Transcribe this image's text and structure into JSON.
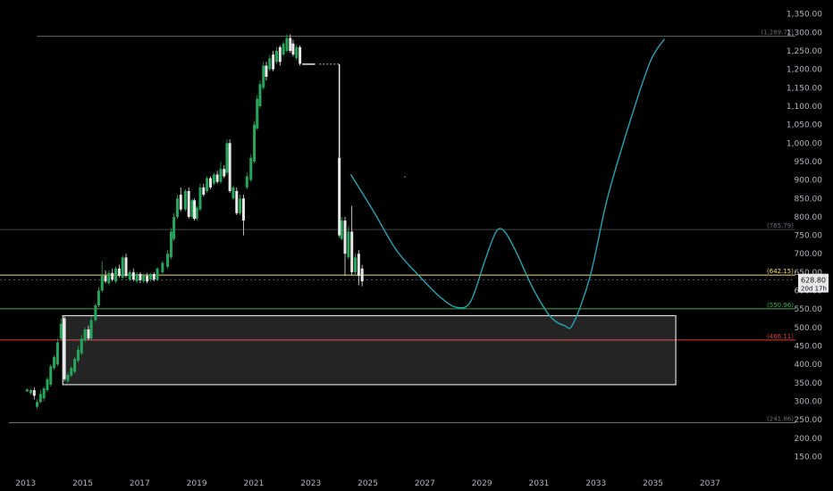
{
  "chart_data": {
    "type": "candlestick",
    "x_range": [
      2012.1,
      2038.9
    ],
    "y_range": [
      110,
      1388
    ],
    "y_ticks": [
      150,
      200,
      250,
      300,
      350,
      400,
      450,
      500,
      550,
      600,
      650,
      700,
      750,
      800,
      850,
      900,
      950,
      1000,
      1050,
      1100,
      1150,
      1200,
      1250,
      1300,
      1350
    ],
    "y_tick_labels": [
      "150.00",
      "200.00",
      "250.00",
      "300.00",
      "350.00",
      "400.00",
      "450.00",
      "500.00",
      "550.00",
      "600.00",
      "650.00",
      "700.00",
      "750.00",
      "800.00",
      "850.00",
      "900.00",
      "950.00",
      "1,000.00",
      "1,050.00",
      "1,100.00",
      "1,150.00",
      "1,200.00",
      "1,250.00",
      "1,300.00",
      "1,350.00"
    ],
    "x_ticks": [
      2013,
      2015,
      2017,
      2019,
      2021,
      2023,
      2025,
      2027,
      2029,
      2031,
      2033,
      2035,
      2037
    ],
    "x_tick_labels": [
      "2013",
      "2015",
      "2017",
      "2019",
      "2021",
      "2023",
      "2025",
      "2027",
      "2029",
      "2031",
      "2033",
      "2035",
      "2037"
    ],
    "levels": [
      {
        "value": 1289.72,
        "label": "(1,289.72)",
        "color": "#5d6e5f",
        "label_color": "#6b6f7a",
        "x_start": 2013.4
      },
      {
        "value": 765.79,
        "label": "(765.79)",
        "color": "#444444",
        "label_color": "#6b6f7a",
        "x_start": 2012.1
      },
      {
        "value": 642.15,
        "label": "(642.15)",
        "color": "#f5e24b",
        "label_color": "#f5e24b",
        "x_start": 2012.1
      },
      {
        "value": 550.96,
        "label": "(550.96)",
        "color": "#38b24a",
        "label_color": "#38b24a",
        "x_start": 2012.1
      },
      {
        "value": 466.11,
        "label": "(466.11)",
        "color": "#e23a3a",
        "label_color": "#e23a3a",
        "x_start": 2012.1
      },
      {
        "value": 241.86,
        "label": "(241.86)",
        "color": "#6b6f7a",
        "label_color": "#6b6f7a",
        "x_start": 2012.4
      }
    ],
    "current_price": {
      "value": 628.8,
      "label": "628.80",
      "countdown": "20d 17h"
    },
    "box": {
      "x0": 2014.3,
      "x1": 2035.8,
      "y_top": 532,
      "y_bottom": 345
    },
    "projection_path": [
      [
        2024.4,
        915
      ],
      [
        2025.2,
        815
      ],
      [
        2026.0,
        710
      ],
      [
        2026.8,
        640
      ],
      [
        2027.5,
        585
      ],
      [
        2028.1,
        555
      ],
      [
        2028.6,
        570
      ],
      [
        2029.1,
        680
      ],
      [
        2029.5,
        760
      ],
      [
        2029.8,
        760
      ],
      [
        2030.2,
        705
      ],
      [
        2030.8,
        605
      ],
      [
        2031.4,
        530
      ],
      [
        2031.9,
        505
      ],
      [
        2032.2,
        510
      ],
      [
        2032.8,
        640
      ],
      [
        2033.4,
        850
      ],
      [
        2034.2,
        1060
      ],
      [
        2034.9,
        1220
      ],
      [
        2035.4,
        1282
      ]
    ],
    "candles_bull": [
      [
        2013.05,
        327,
        332,
        335,
        325
      ],
      [
        2013.18,
        322,
        330,
        333,
        318
      ],
      [
        2013.4,
        285,
        298,
        305,
        280
      ],
      [
        2013.52,
        298,
        320,
        330,
        295
      ],
      [
        2013.64,
        308,
        335,
        340,
        300
      ],
      [
        2013.76,
        330,
        360,
        365,
        325
      ],
      [
        2013.88,
        345,
        395,
        400,
        340
      ],
      [
        2014.0,
        390,
        420,
        425,
        385
      ],
      [
        2014.12,
        400,
        460,
        470,
        395
      ],
      [
        2014.24,
        470,
        510,
        525,
        465
      ],
      [
        2014.48,
        355,
        372,
        380,
        350
      ],
      [
        2014.6,
        370,
        390,
        395,
        365
      ],
      [
        2014.72,
        380,
        415,
        420,
        375
      ],
      [
        2014.84,
        410,
        440,
        450,
        405
      ],
      [
        2014.96,
        430,
        470,
        480,
        425
      ],
      [
        2015.08,
        465,
        495,
        500,
        460
      ],
      [
        2015.3,
        470,
        520,
        530,
        465
      ],
      [
        2015.45,
        520,
        560,
        565,
        515
      ],
      [
        2015.56,
        560,
        600,
        610,
        555
      ],
      [
        2015.68,
        600,
        640,
        680,
        595
      ],
      [
        2015.92,
        620,
        648,
        655,
        615
      ],
      [
        2016.16,
        625,
        660,
        665,
        620
      ],
      [
        2016.4,
        635,
        690,
        695,
        630
      ],
      [
        2016.65,
        630,
        650,
        655,
        625
      ],
      [
        2016.9,
        625,
        645,
        650,
        620
      ],
      [
        2017.14,
        625,
        640,
        645,
        620
      ],
      [
        2017.38,
        630,
        645,
        648,
        625
      ],
      [
        2017.62,
        630,
        660,
        665,
        625
      ],
      [
        2017.8,
        650,
        675,
        680,
        645
      ],
      [
        2017.98,
        665,
        700,
        710,
        660
      ],
      [
        2018.1,
        690,
        760,
        770,
        685
      ],
      [
        2018.2,
        740,
        800,
        810,
        735
      ],
      [
        2018.32,
        800,
        850,
        860,
        795
      ],
      [
        2018.6,
        820,
        870,
        875,
        815
      ],
      [
        2018.84,
        800,
        845,
        850,
        795
      ],
      [
        2019.0,
        795,
        825,
        830,
        790
      ],
      [
        2019.12,
        820,
        880,
        890,
        815
      ],
      [
        2019.36,
        870,
        905,
        910,
        865
      ],
      [
        2019.6,
        890,
        915,
        920,
        885
      ],
      [
        2019.84,
        895,
        930,
        950,
        890
      ],
      [
        2020.06,
        920,
        1000,
        1010,
        915
      ],
      [
        2020.28,
        850,
        880,
        885,
        845
      ],
      [
        2020.52,
        810,
        850,
        860,
        805
      ],
      [
        2020.76,
        880,
        910,
        920,
        875
      ],
      [
        2020.9,
        900,
        960,
        970,
        895
      ],
      [
        2021.02,
        950,
        1050,
        1060,
        945
      ],
      [
        2021.12,
        1040,
        1120,
        1130,
        1035
      ],
      [
        2021.22,
        1100,
        1160,
        1170,
        1095
      ],
      [
        2021.34,
        1150,
        1210,
        1220,
        1145
      ],
      [
        2021.56,
        1200,
        1230,
        1240,
        1195
      ],
      [
        2021.8,
        1220,
        1250,
        1260,
        1215
      ],
      [
        2022.04,
        1240,
        1270,
        1275,
        1235
      ],
      [
        2022.16,
        1250,
        1285,
        1295,
        1245
      ],
      [
        2022.5,
        1230,
        1260,
        1268,
        1225
      ],
      [
        2024.08,
        740,
        790,
        800,
        735
      ],
      [
        2024.32,
        690,
        760,
        775,
        685
      ],
      [
        2024.56,
        650,
        690,
        700,
        640
      ]
    ],
    "candles_bear": [
      [
        2013.3,
        330,
        315,
        338,
        305
      ],
      [
        2014.36,
        525,
        360,
        530,
        355
      ],
      [
        2015.2,
        495,
        470,
        505,
        465
      ],
      [
        2015.8,
        640,
        625,
        655,
        620
      ],
      [
        2016.04,
        648,
        630,
        660,
        625
      ],
      [
        2016.28,
        660,
        640,
        670,
        635
      ],
      [
        2016.52,
        690,
        640,
        700,
        635
      ],
      [
        2016.78,
        650,
        630,
        660,
        625
      ],
      [
        2017.02,
        645,
        628,
        650,
        620
      ],
      [
        2017.26,
        640,
        625,
        648,
        620
      ],
      [
        2017.5,
        645,
        630,
        650,
        625
      ],
      [
        2018.44,
        860,
        820,
        880,
        815
      ],
      [
        2018.72,
        870,
        800,
        880,
        795
      ],
      [
        2018.92,
        845,
        795,
        850,
        790
      ],
      [
        2019.24,
        880,
        860,
        890,
        855
      ],
      [
        2019.48,
        905,
        880,
        910,
        875
      ],
      [
        2019.72,
        915,
        895,
        925,
        890
      ],
      [
        2019.96,
        930,
        910,
        940,
        905
      ],
      [
        2020.16,
        1000,
        870,
        1010,
        865
      ],
      [
        2020.4,
        870,
        810,
        880,
        805
      ],
      [
        2020.64,
        850,
        790,
        860,
        750
      ],
      [
        2021.44,
        1210,
        1180,
        1220,
        1170
      ],
      [
        2021.68,
        1240,
        1200,
        1250,
        1195
      ],
      [
        2021.92,
        1260,
        1220,
        1265,
        1210
      ],
      [
        2022.28,
        1285,
        1250,
        1295,
        1245
      ],
      [
        2022.38,
        1270,
        1240,
        1280,
        1235
      ],
      [
        2022.62,
        1260,
        1215,
        1265,
        1210
      ],
      [
        2024.0,
        960,
        750,
        970,
        745
      ],
      [
        2024.2,
        790,
        700,
        800,
        640
      ],
      [
        2024.44,
        760,
        650,
        830,
        640
      ],
      [
        2024.68,
        700,
        640,
        710,
        615
      ],
      [
        2024.8,
        660,
        625,
        670,
        612
      ]
    ],
    "flat_segment": [
      [
        2022.7,
        1214
      ],
      [
        2023.15,
        1214
      ],
      [
        2023.3,
        1214
      ],
      [
        2024.0,
        1214
      ]
    ],
    "drop_line": {
      "x": 2024.0,
      "from": 1214,
      "to": 960
    }
  }
}
